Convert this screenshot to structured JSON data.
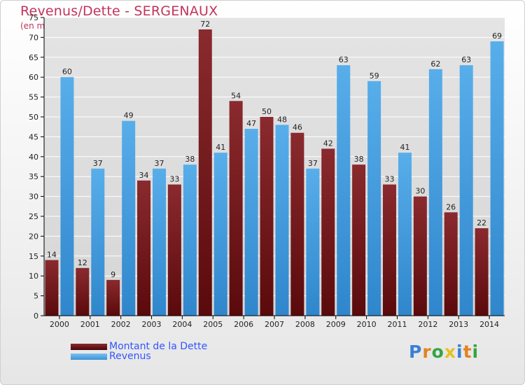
{
  "header": {
    "title": "Revenus/Dette - SERGENAUX",
    "subtitle": "(en milliers d'€)"
  },
  "legend": {
    "debt_label": "Montant de la Dette",
    "revenue_label": "Revenus"
  },
  "logo": {
    "text": "Proxiti",
    "letters": [
      "P",
      "r",
      "o",
      "x",
      "i",
      "t",
      "i"
    ],
    "colors": [
      "#3a7fd6",
      "#e4821e",
      "#35a444",
      "#e4c21e",
      "#3a7fd6",
      "#e4821e",
      "#35a444"
    ]
  },
  "colors": {
    "debt": "#7b1b1b",
    "revenue": "#4aa4e6",
    "axis": "#000000",
    "grid": "#ffffff"
  },
  "chart_data": {
    "type": "bar",
    "categories": [
      "2000",
      "2001",
      "2002",
      "2003",
      "2004",
      "2005",
      "2006",
      "2007",
      "2008",
      "2009",
      "2010",
      "2011",
      "2012",
      "2013",
      "2014"
    ],
    "series": [
      {
        "name": "Montant de la Dette",
        "values": [
          14,
          12,
          9,
          34,
          33,
          72,
          54,
          50,
          46,
          42,
          38,
          33,
          30,
          26,
          22
        ]
      },
      {
        "name": "Revenus",
        "values": [
          60,
          37,
          49,
          37,
          38,
          41,
          47,
          48,
          37,
          63,
          59,
          41,
          62,
          63,
          69
        ]
      }
    ],
    "y_ticks": [
      0,
      5,
      10,
      15,
      20,
      25,
      30,
      35,
      40,
      45,
      50,
      55,
      60,
      65,
      70,
      75
    ],
    "ylim": [
      0,
      75
    ],
    "grid": true,
    "legend_position": "bottom-left"
  }
}
